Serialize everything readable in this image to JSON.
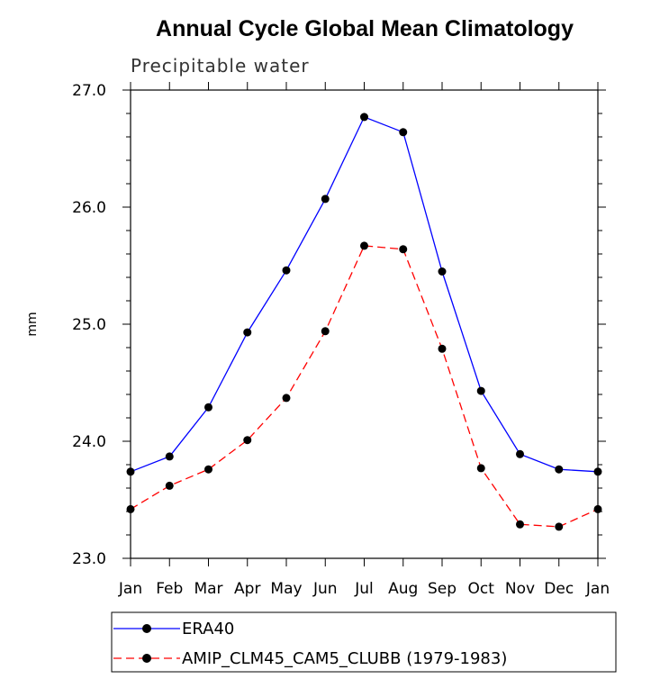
{
  "chart_data": {
    "type": "line",
    "title": "Annual Cycle Global Mean Climatology",
    "subtitle": "Precipitable water",
    "xlabel": "",
    "ylabel": "mm",
    "categories": [
      "Jan",
      "Feb",
      "Mar",
      "Apr",
      "May",
      "Jun",
      "Jul",
      "Aug",
      "Sep",
      "Oct",
      "Nov",
      "Dec",
      "Jan"
    ],
    "yticks": [
      "23.0",
      "24.0",
      "25.0",
      "26.0",
      "27.0"
    ],
    "ylim": [
      23.0,
      27.0
    ],
    "grid": false,
    "legend_position": "bottom",
    "series": [
      {
        "name": "ERA40",
        "color": "#0000ff",
        "dash": "solid",
        "values": [
          23.74,
          23.87,
          24.29,
          24.93,
          25.46,
          26.07,
          26.77,
          26.64,
          25.45,
          24.43,
          23.89,
          23.76,
          23.74
        ]
      },
      {
        "name": "AMIP_CLM45_CAM5_CLUBB (1979-1983)",
        "color": "#ff0000",
        "dash": "dashed",
        "values": [
          23.42,
          23.62,
          23.76,
          24.01,
          24.37,
          24.94,
          25.67,
          25.64,
          24.79,
          23.77,
          23.29,
          23.27,
          23.42
        ]
      }
    ]
  }
}
